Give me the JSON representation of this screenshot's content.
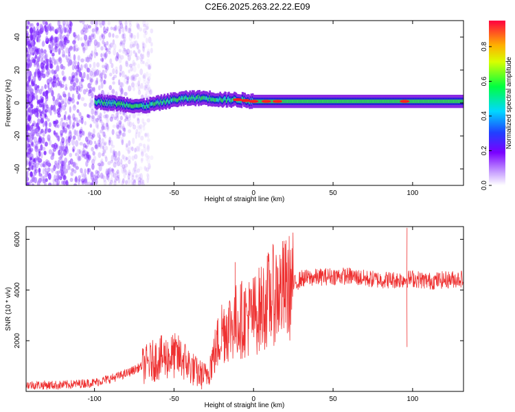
{
  "title": "C2E6.2025.263.22.22.E09",
  "colors": {
    "snr_line": "#ee3030",
    "spectrogram_noise": "#7a1fff",
    "spectrogram_band": "#2fd05a",
    "spectrogram_peak": "#ff2020"
  },
  "chart_data": [
    {
      "type": "heatmap",
      "name": "spectrogram",
      "xlabel": "Height of straight line (km)",
      "ylabel": "Frequency (Hz)",
      "xlim": [
        -143,
        132
      ],
      "ylim": [
        -50,
        50
      ],
      "xticks": [
        -100,
        -50,
        0,
        50,
        100
      ],
      "yticks": [
        -40,
        -20,
        0,
        20,
        40
      ],
      "colorbar": {
        "label": "Normalized spectral amplitude",
        "range": [
          0,
          0.95
        ],
        "ticks": [
          0.0,
          0.2,
          0.4,
          0.6,
          0.8
        ],
        "colormap": "rainbow (purple-blue-cyan-green-yellow-red)"
      },
      "band": {
        "center_hz": [
          [
            -100,
            1
          ],
          [
            -90,
            0
          ],
          [
            -80,
            -1
          ],
          [
            -70,
            -2
          ],
          [
            -60,
            0
          ],
          [
            -50,
            2
          ],
          [
            -40,
            3
          ],
          [
            -30,
            3
          ],
          [
            -20,
            2
          ],
          [
            -10,
            2
          ],
          [
            0,
            1
          ],
          [
            50,
            1
          ],
          [
            100,
            1
          ],
          [
            132,
            1
          ]
        ],
        "half_width_hz": 4
      },
      "noise_region_km": [
        -143,
        -68
      ],
      "hot_spots_km": [
        -10,
        -5,
        0,
        8,
        15,
        95
      ]
    },
    {
      "type": "line",
      "name": "snr",
      "xlabel": "Height of straight line (km)",
      "ylabel": "SNR (10 * v/v)",
      "xlim": [
        -143,
        132
      ],
      "ylim": [
        0,
        6500
      ],
      "xticks": [
        -100,
        -50,
        0,
        50,
        100
      ],
      "yticks": [
        2000,
        4000,
        6000
      ],
      "series": [
        {
          "envelope": [
            [
              -143,
              250
            ],
            [
              -120,
              250
            ],
            [
              -100,
              350
            ],
            [
              -90,
              500
            ],
            [
              -80,
              700
            ],
            [
              -70,
              1000
            ],
            [
              -60,
              1300
            ],
            [
              -50,
              1400
            ],
            [
              -45,
              1300
            ],
            [
              -40,
              1000
            ],
            [
              -35,
              700
            ],
            [
              -30,
              600
            ],
            [
              -25,
              1400
            ],
            [
              -20,
              2400
            ],
            [
              -15,
              2600
            ],
            [
              -10,
              2800
            ],
            [
              -5,
              2900
            ],
            [
              0,
              3000
            ],
            [
              5,
              3300
            ],
            [
              10,
              3700
            ],
            [
              15,
              3900
            ],
            [
              20,
              4000
            ],
            [
              25,
              4200
            ],
            [
              30,
              4450
            ],
            [
              40,
              4500
            ],
            [
              50,
              4550
            ],
            [
              60,
              4550
            ],
            [
              70,
              4450
            ],
            [
              80,
              4400
            ],
            [
              90,
              4400
            ],
            [
              100,
              4450
            ],
            [
              110,
              4350
            ],
            [
              120,
              4400
            ],
            [
              132,
              4450
            ]
          ],
          "spikes": [
            [
              -11.5,
              5100
            ],
            [
              96.5,
              6450
            ],
            [
              96.5,
              1750
            ]
          ]
        }
      ]
    }
  ]
}
